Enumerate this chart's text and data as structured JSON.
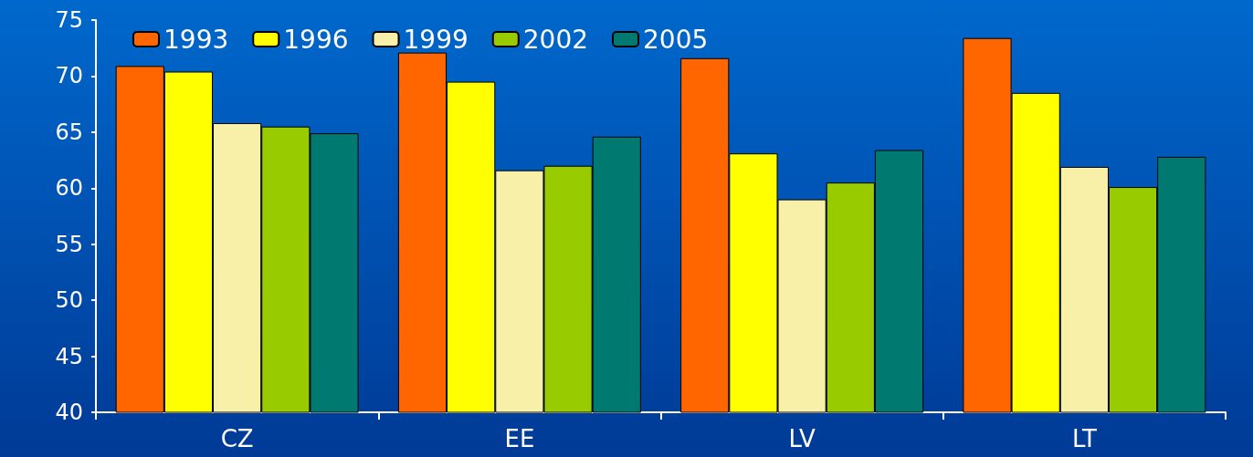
{
  "chart_data": {
    "type": "bar",
    "categories": [
      "CZ",
      "EE",
      "LV",
      "LT"
    ],
    "series": [
      {
        "name": "1993",
        "color": "#ff6600",
        "values": [
          70.9,
          72.1,
          71.6,
          73.4
        ]
      },
      {
        "name": "1996",
        "color": "#ffff00",
        "values": [
          70.4,
          69.5,
          63.1,
          68.5
        ]
      },
      {
        "name": "1999",
        "color": "#f8f0a8",
        "values": [
          65.8,
          61.6,
          59.0,
          61.9
        ]
      },
      {
        "name": "2002",
        "color": "#99cc00",
        "values": [
          65.5,
          62.0,
          60.5,
          60.1
        ]
      },
      {
        "name": "2005",
        "color": "#007a70",
        "values": [
          64.9,
          64.6,
          63.4,
          62.8
        ]
      }
    ],
    "ylim": [
      40,
      75
    ],
    "yticks": [
      40,
      45,
      50,
      55,
      60,
      65,
      70,
      75
    ],
    "grid": false,
    "legend": "top left"
  }
}
